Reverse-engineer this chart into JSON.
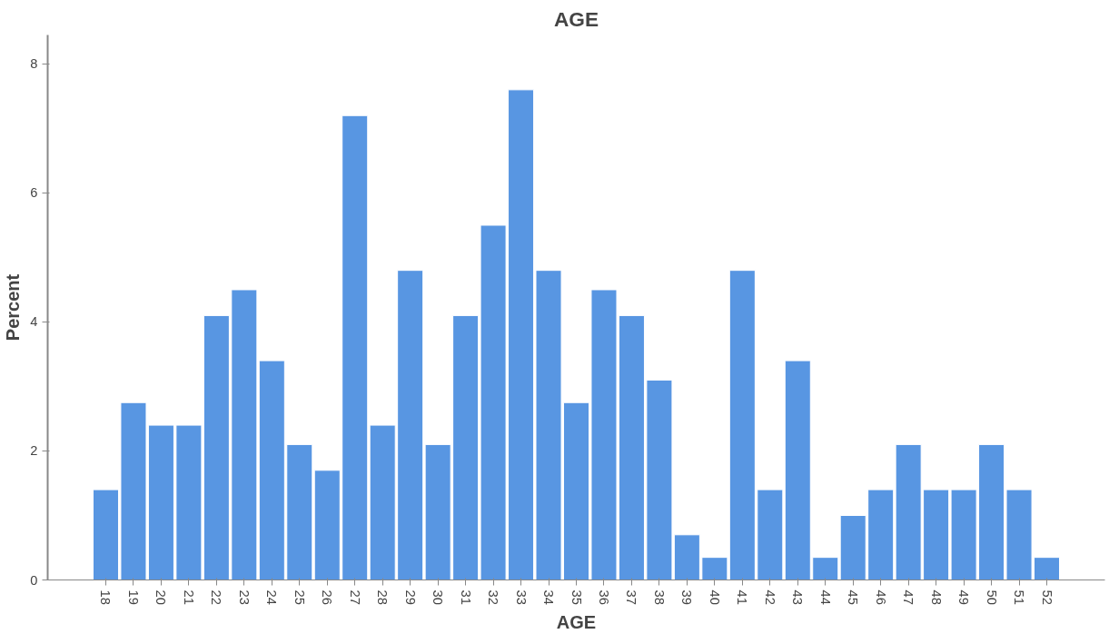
{
  "chart_data": {
    "type": "bar",
    "title": "AGE",
    "xlabel": "AGE",
    "ylabel": "Percent",
    "categories": [
      "18",
      "19",
      "20",
      "21",
      "22",
      "23",
      "24",
      "25",
      "26",
      "27",
      "28",
      "29",
      "30",
      "31",
      "32",
      "33",
      "34",
      "35",
      "36",
      "37",
      "38",
      "39",
      "40",
      "41",
      "42",
      "43",
      "44",
      "45",
      "46",
      "47",
      "48",
      "49",
      "50",
      "51",
      "52"
    ],
    "values": [
      1.4,
      2.75,
      2.4,
      2.4,
      4.1,
      4.5,
      3.4,
      2.1,
      1.7,
      7.2,
      2.4,
      4.8,
      2.1,
      4.1,
      5.5,
      7.6,
      4.8,
      2.75,
      4.5,
      4.1,
      3.1,
      0.7,
      0.35,
      4.8,
      1.4,
      3.4,
      0.35,
      1.0,
      1.4,
      2.1,
      1.4,
      1.4,
      2.1,
      1.4,
      0.35
    ],
    "color": "#5896e2",
    "ylim": [
      0,
      8.45
    ],
    "yticks": [
      0,
      2,
      4,
      6,
      8
    ]
  }
}
